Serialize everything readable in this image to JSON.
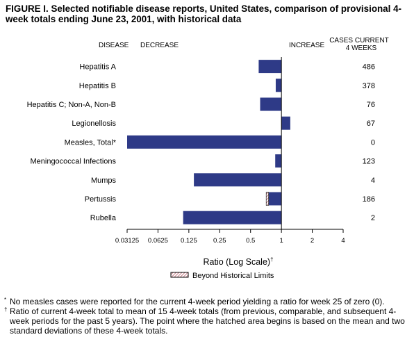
{
  "title": "FIGURE I. Selected notifiable disease reports, United States, comparison of provisional 4-week totals ending June 23, 2001, with historical data",
  "headers": {
    "disease": "DISEASE",
    "decrease": "DECREASE",
    "increase": "INCREASE",
    "cases_line1": "CASES CURRENT",
    "cases_line2": "4 WEEKS"
  },
  "legend": {
    "label": "Beyond Historical Limits"
  },
  "footnotes": [
    {
      "mark": "*",
      "text": "No measles cases were reported for the current 4-week period yielding a ratio for week 25 of zero (0)."
    },
    {
      "mark": "†",
      "text": "Ratio of current 4-week total to mean of 15 4-week totals (from previous, comparable, and subsequent 4-week periods for the past 5 years). The point where the hatched area begins is based on the mean and two standard deviations of these 4-week totals."
    }
  ],
  "colors": {
    "bar": "#2e3a87",
    "hatch": "#c77d86",
    "axis": "#000000"
  },
  "chart_data": {
    "type": "bar",
    "orientation": "horizontal",
    "xlabel": "Ratio (Log Scale)",
    "xlabel_mark": "†",
    "x_scale": "log2",
    "xlim": [
      0.03125,
      4
    ],
    "xticks": [
      0.03125,
      0.0625,
      0.125,
      0.25,
      0.5,
      1,
      2,
      4
    ],
    "xtick_labels": [
      "0.03125",
      "0.0625",
      "0.125",
      "0.25",
      "0.5",
      "1",
      "2",
      "4"
    ],
    "baseline": 1,
    "rows": [
      {
        "disease": "Hepatitis A",
        "ratio": 0.6,
        "cases": "486"
      },
      {
        "disease": "Hepatitis B",
        "ratio": 0.88,
        "cases": "378"
      },
      {
        "disease": "Hepatitis C; Non-A, Non-B",
        "ratio": 0.62,
        "cases": "76"
      },
      {
        "disease": "Legionellosis",
        "ratio": 1.22,
        "cases": "67"
      },
      {
        "disease": "Measles, Total*",
        "ratio": 0.03125,
        "cases": "0"
      },
      {
        "disease": "Meningococcal Infections",
        "ratio": 0.87,
        "cases": "123"
      },
      {
        "disease": "Mumps",
        "ratio": 0.14,
        "cases": "4"
      },
      {
        "disease": "Pertussis",
        "ratio": 0.71,
        "hatch_from": 0.75,
        "cases": "186"
      },
      {
        "disease": "Rubella",
        "ratio": 0.11,
        "cases": "2"
      }
    ]
  }
}
